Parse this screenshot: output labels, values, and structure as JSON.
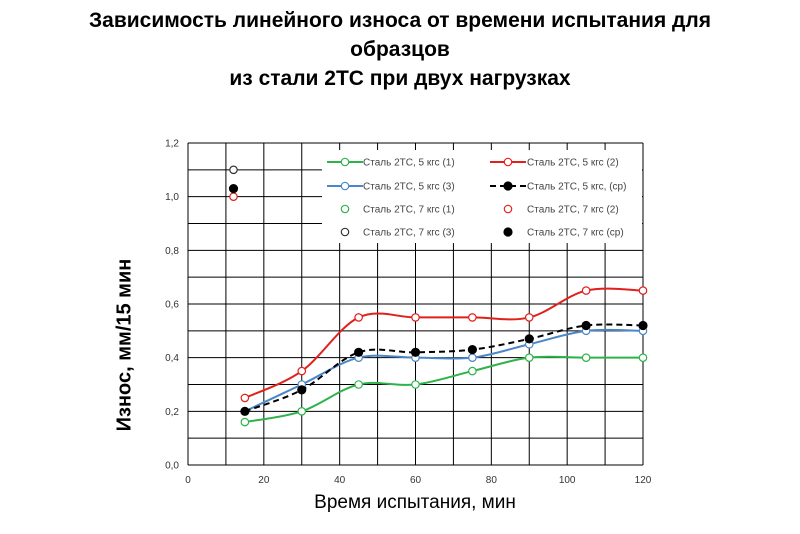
{
  "title_lines": [
    "Зависимость линейного износа от времени испытания для",
    "образцов",
    "из стали 2ТС при двух нагрузках"
  ],
  "chart_data": {
    "type": "line",
    "xlabel": "Время испытания, мин",
    "ylabel": "Износ, мм/15 мин",
    "xlim": [
      0,
      120
    ],
    "ylim": [
      0,
      1.2
    ],
    "xticks": [
      "0",
      "20",
      "40",
      "60",
      "80",
      "100",
      "120"
    ],
    "yticks": [
      "0,0",
      "0,2",
      "0,4",
      "0,6",
      "0,8",
      "1,0",
      "1,2"
    ],
    "grid": true,
    "legend_position": "top-right",
    "series": [
      {
        "name": "Сталь 2ТС, 5 кгс (1)",
        "color": "#2db34a",
        "style": "solid",
        "marker": "open-circle",
        "x": [
          15,
          30,
          45,
          60,
          75,
          90,
          105,
          120
        ],
        "y": [
          0.16,
          0.2,
          0.3,
          0.3,
          0.35,
          0.4,
          0.4,
          0.4
        ]
      },
      {
        "name": "Сталь 2ТС, 5 кгс (2)",
        "color": "#e0201b",
        "style": "solid",
        "marker": "open-circle",
        "x": [
          15,
          30,
          45,
          60,
          75,
          90,
          105,
          120
        ],
        "y": [
          0.25,
          0.35,
          0.55,
          0.55,
          0.55,
          0.55,
          0.65,
          0.65
        ]
      },
      {
        "name": "Сталь 2ТС, 5 кгс (3)",
        "color": "#4a86c8",
        "style": "solid",
        "marker": "open-circle",
        "x": [
          15,
          30,
          45,
          60,
          75,
          90,
          105,
          120
        ],
        "y": [
          0.2,
          0.3,
          0.4,
          0.4,
          0.4,
          0.45,
          0.5,
          0.5
        ]
      },
      {
        "name": "Сталь 2ТС, 5 кгс, (ср)",
        "color": "#000000",
        "style": "dashed",
        "marker": "filled-circle",
        "x": [
          15,
          30,
          45,
          60,
          75,
          90,
          105,
          120
        ],
        "y": [
          0.2,
          0.28,
          0.42,
          0.42,
          0.43,
          0.47,
          0.52,
          0.52
        ]
      },
      {
        "name": "Сталь 2ТС, 7 кгс (1)",
        "color": "#2db34a",
        "style": "none",
        "marker": "open-circle",
        "x": [],
        "y": []
      },
      {
        "name": "Сталь 2ТС, 7 кгс (2)",
        "color": "#e0201b",
        "style": "none",
        "marker": "open-circle",
        "x": [
          12
        ],
        "y": [
          1.0
        ]
      },
      {
        "name": "Сталь 2ТС, 7 кгс (3)",
        "color": "#333333",
        "style": "none",
        "marker": "open-circle",
        "x": [
          12
        ],
        "y": [
          1.1
        ]
      },
      {
        "name": "Сталь 2ТС, 7 кгс (ср)",
        "color": "#000000",
        "style": "none",
        "marker": "filled-circle",
        "x": [
          12
        ],
        "y": [
          1.03
        ]
      }
    ]
  }
}
